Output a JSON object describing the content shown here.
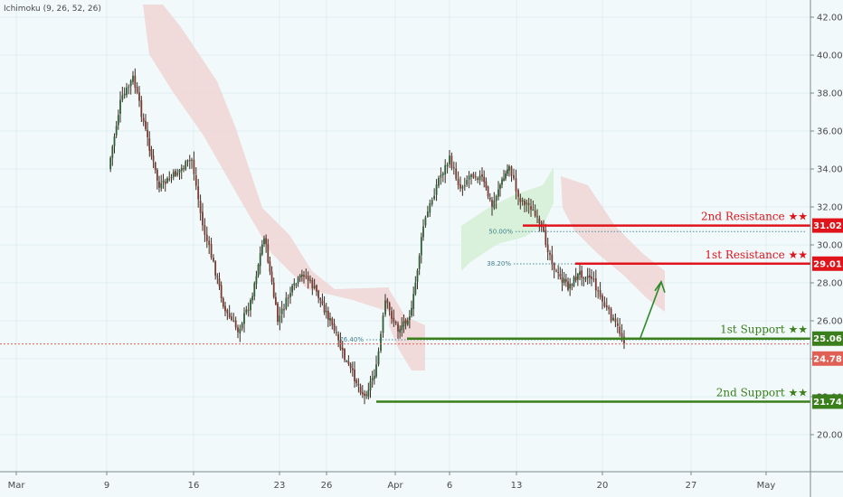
{
  "indicator": {
    "label": "Ichimoku (9, 26, 52, 26)"
  },
  "colors": {
    "background": "#f1f9fb",
    "resistance": "#e0141b",
    "support": "#3b7f1c",
    "current_price": "#e06055",
    "cloud_bearish": "#f0d6d6",
    "cloud_bullish": "#d7f0d8",
    "candle": "#3d2c22",
    "fib_line": "#4f8f9b",
    "arrow": "#2d8a2b"
  },
  "chart_data": {
    "type": "candlestick",
    "title": "",
    "x_ticks": [
      "Mar",
      "9",
      "16",
      "23",
      "26",
      "Apr",
      "6",
      "13",
      "20",
      "27",
      "May"
    ],
    "y_ticks": [
      "20.00",
      "22.00",
      "24.00",
      "26.00",
      "28.00",
      "30.00",
      "32.00",
      "34.00",
      "36.00",
      "38.00",
      "40.00",
      "42.00"
    ],
    "ylim": [
      18.8,
      42.9
    ],
    "price_path": [
      {
        "x": "Mar 9",
        "y": 34.0
      },
      {
        "x": "Mar 10",
        "y": 37.5
      },
      {
        "x": "Mar 11",
        "y": 38.8
      },
      {
        "x": "Mar 12",
        "y": 36.0
      },
      {
        "x": "Mar 13",
        "y": 33.0
      },
      {
        "x": "Mar 16",
        "y": 34.5
      },
      {
        "x": "Mar 17",
        "y": 31.0
      },
      {
        "x": "Mar 18",
        "y": 29.0
      },
      {
        "x": "Mar 19",
        "y": 26.5
      },
      {
        "x": "Mar 20",
        "y": 25.5
      },
      {
        "x": "Mar 21",
        "y": 27.0
      },
      {
        "x": "Mar 22",
        "y": 30.5
      },
      {
        "x": "Mar 23",
        "y": 26.0
      },
      {
        "x": "Mar 24",
        "y": 27.5
      },
      {
        "x": "Mar 25",
        "y": 28.5
      },
      {
        "x": "Mar 26",
        "y": 27.5
      },
      {
        "x": "Mar 27",
        "y": 26.0
      },
      {
        "x": "Mar 28",
        "y": 24.0
      },
      {
        "x": "Mar 29",
        "y": 22.0
      },
      {
        "x": "Mar 30",
        "y": 23.5
      },
      {
        "x": "Mar 31",
        "y": 27.0
      },
      {
        "x": "Apr 1",
        "y": 25.5
      },
      {
        "x": "Apr 2",
        "y": 26.5
      },
      {
        "x": "Apr 3",
        "y": 31.0
      },
      {
        "x": "Apr 4",
        "y": 33.5
      },
      {
        "x": "Apr 5",
        "y": 34.5
      },
      {
        "x": "Apr 6",
        "y": 33.0
      },
      {
        "x": "Apr 7",
        "y": 33.8
      },
      {
        "x": "Apr 8",
        "y": 33.5
      },
      {
        "x": "Apr 9",
        "y": 32.0
      },
      {
        "x": "Apr 10",
        "y": 33.0
      },
      {
        "x": "Apr 11",
        "y": 33.5
      },
      {
        "x": "Apr 12",
        "y": 34.2
      },
      {
        "x": "Apr 13",
        "y": 32.5
      },
      {
        "x": "Apr 14",
        "y": 32.0
      },
      {
        "x": "Apr 15",
        "y": 30.5
      },
      {
        "x": "Apr 16",
        "y": 28.5
      },
      {
        "x": "Apr 17",
        "y": 27.8
      },
      {
        "x": "Apr 18",
        "y": 28.5
      },
      {
        "x": "Apr 19",
        "y": 28.3
      },
      {
        "x": "Apr 20",
        "y": 27.0
      },
      {
        "x": "Apr 21",
        "y": 26.0
      },
      {
        "x": "Apr 22",
        "y": 25.0
      }
    ],
    "levels": [
      {
        "label": "2nd Resistance ★★",
        "value": 31.02,
        "value_label": "31.02",
        "kind": "resistance"
      },
      {
        "label": "1st Resistance ★★",
        "value": 29.01,
        "value_label": "29.01",
        "kind": "resistance"
      },
      {
        "label": "1st Support ★★",
        "value": 25.06,
        "value_label": "25.06",
        "kind": "support"
      },
      {
        "label": "2nd Support ★★",
        "value": 21.74,
        "value_label": "21.74",
        "kind": "support"
      }
    ],
    "current_price": {
      "value": 24.78,
      "value_label": "24.78"
    },
    "fib_levels": [
      {
        "label": "50.00%",
        "value": 30.7
      },
      {
        "label": "38.20%",
        "value": 29.0
      },
      {
        "label": "76.40%",
        "value": 25.0
      }
    ],
    "projection_arrow": {
      "from": {
        "x": "Apr 22",
        "y": 25.06
      },
      "to": {
        "x": "Apr 24",
        "y": 29.01
      }
    },
    "grid": true
  }
}
